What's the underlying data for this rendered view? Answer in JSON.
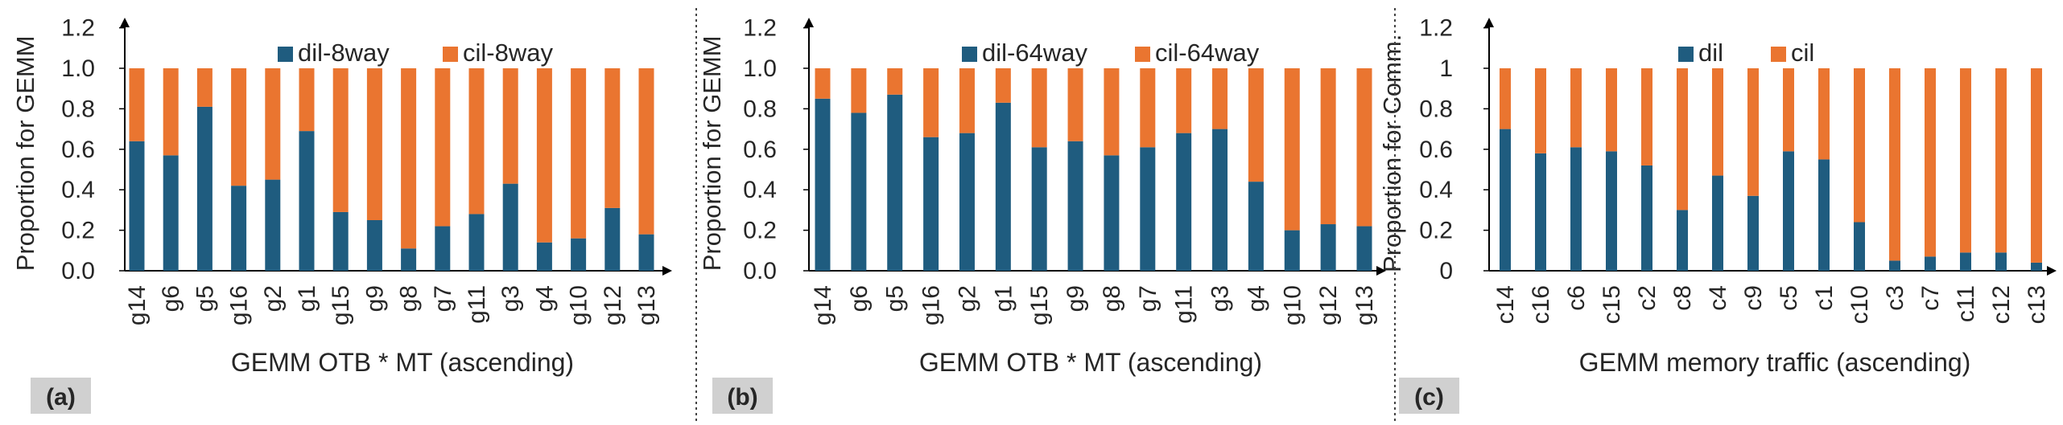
{
  "colors": {
    "dil": "#1f5c7f",
    "cil": "#ea7530",
    "axis": "#000000",
    "separator": "#444444",
    "panel_label_bg": "#d0d0d0"
  },
  "chart_data": [
    {
      "type": "bar",
      "stacked": true,
      "panel_label": "(a)",
      "xlabel": "GEMM OTB * MT  (ascending)",
      "ylabel": "Proportion for GEMM",
      "ylim": [
        0,
        1.2
      ],
      "yticks": [
        "0.0",
        "0.2",
        "0.4",
        "0.6",
        "0.8",
        "1.0",
        "1.2"
      ],
      "legend_position": "top",
      "categories": [
        "g14",
        "g6",
        "g5",
        "g16",
        "g2",
        "g1",
        "g15",
        "g9",
        "g8",
        "g7",
        "g11",
        "g3",
        "g4",
        "g10",
        "g12",
        "g13"
      ],
      "series": [
        {
          "name": "dil-8way",
          "color": "#1f5c7f",
          "values": [
            0.64,
            0.57,
            0.81,
            0.42,
            0.45,
            0.69,
            0.29,
            0.25,
            0.11,
            0.22,
            0.28,
            0.43,
            0.14,
            0.16,
            0.31,
            0.18
          ]
        },
        {
          "name": "cil-8way",
          "color": "#ea7530",
          "values": [
            0.36,
            0.43,
            0.19,
            0.58,
            0.55,
            0.31,
            0.71,
            0.75,
            0.89,
            0.78,
            0.72,
            0.57,
            0.86,
            0.84,
            0.69,
            0.82
          ]
        }
      ]
    },
    {
      "type": "bar",
      "stacked": true,
      "panel_label": "(b)",
      "xlabel": "GEMM OTB * MT (ascending)",
      "ylabel": "Proportion for GEMM",
      "ylim": [
        0,
        1.2
      ],
      "yticks": [
        "0.0",
        "0.2",
        "0.4",
        "0.6",
        "0.8",
        "1.0",
        "1.2"
      ],
      "legend_position": "top",
      "categories": [
        "g14",
        "g6",
        "g5",
        "g16",
        "g2",
        "g1",
        "g15",
        "g9",
        "g8",
        "g7",
        "g11",
        "g3",
        "g4",
        "g10",
        "g12",
        "g13"
      ],
      "series": [
        {
          "name": "dil-64way",
          "color": "#1f5c7f",
          "values": [
            0.85,
            0.78,
            0.87,
            0.66,
            0.68,
            0.83,
            0.61,
            0.64,
            0.57,
            0.61,
            0.68,
            0.7,
            0.44,
            0.2,
            0.23,
            0.22
          ]
        },
        {
          "name": "cil-64way",
          "color": "#ea7530",
          "values": [
            0.15,
            0.22,
            0.13,
            0.34,
            0.32,
            0.17,
            0.39,
            0.36,
            0.43,
            0.39,
            0.32,
            0.3,
            0.56,
            0.8,
            0.77,
            0.78
          ]
        }
      ]
    },
    {
      "type": "bar",
      "stacked": true,
      "panel_label": "(c)",
      "xlabel": "GEMM memory traffic (ascending)",
      "ylabel": "Proportion for Comm.",
      "ylim": [
        0,
        1.2
      ],
      "yticks": [
        "0",
        "0.2",
        "0.4",
        "0.6",
        "0.8",
        "1",
        "1.2"
      ],
      "legend_position": "top",
      "categories": [
        "c14",
        "c16",
        "c6",
        "c15",
        "c2",
        "c8",
        "c4",
        "c9",
        "c5",
        "c1",
        "c10",
        "c3",
        "c7",
        "c11",
        "c12",
        "c13"
      ],
      "series": [
        {
          "name": "dil",
          "color": "#1f5c7f",
          "values": [
            0.7,
            0.58,
            0.61,
            0.59,
            0.52,
            0.3,
            0.47,
            0.37,
            0.59,
            0.55,
            0.24,
            0.05,
            0.07,
            0.09,
            0.09,
            0.04
          ]
        },
        {
          "name": "cil",
          "color": "#ea7530",
          "values": [
            0.3,
            0.42,
            0.39,
            0.41,
            0.48,
            0.7,
            0.53,
            0.63,
            0.41,
            0.45,
            0.76,
            0.95,
            0.93,
            0.91,
            0.91,
            0.96
          ]
        }
      ]
    }
  ]
}
